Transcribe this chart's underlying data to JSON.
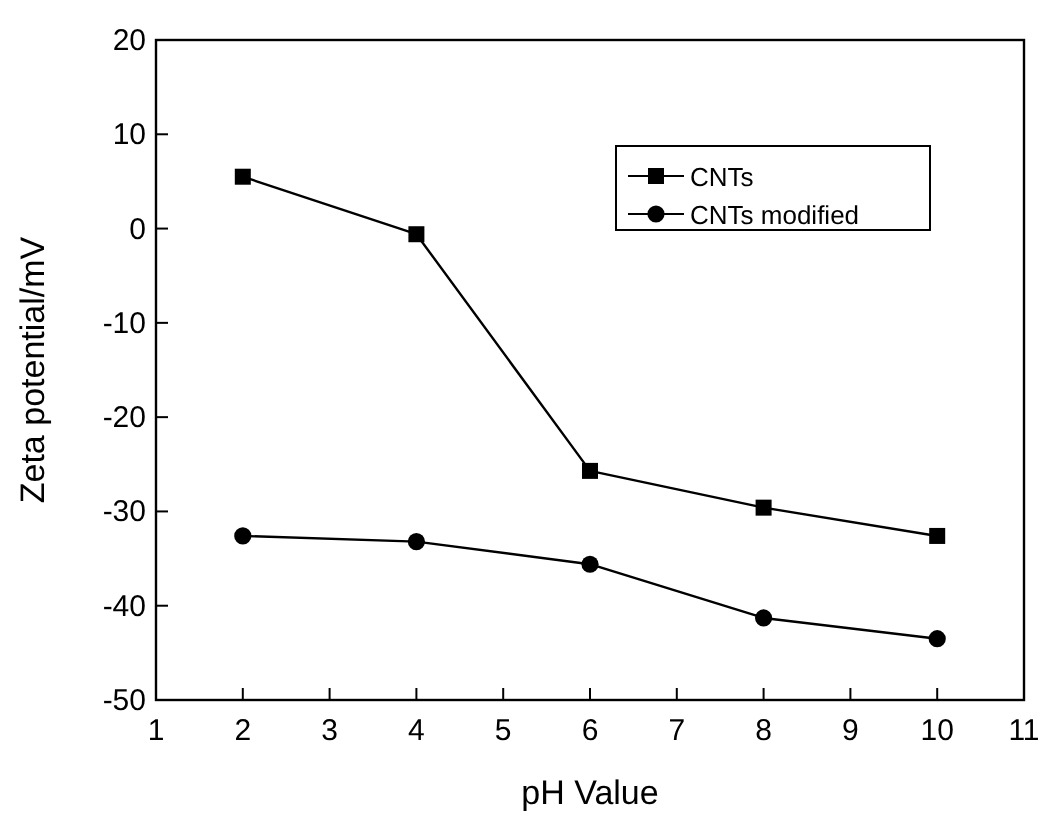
{
  "chart_data": {
    "type": "line",
    "xlabel": "pH Value",
    "ylabel": "Zeta potential/mV",
    "x": [
      2,
      4,
      6,
      8,
      10
    ],
    "xlim": [
      1,
      11
    ],
    "xticks": [
      1,
      2,
      3,
      4,
      5,
      6,
      7,
      8,
      9,
      10,
      11
    ],
    "ylim": [
      -50,
      20
    ],
    "yticks": [
      -50,
      -40,
      -30,
      -20,
      -10,
      0,
      10,
      20
    ],
    "legend": "top right",
    "grid": false,
    "line_style": "solid",
    "series": [
      {
        "name": "CNTs",
        "color": "#000000",
        "marker": "square",
        "values": [
          5.5,
          -0.6,
          -25.7,
          -29.6,
          -32.6
        ]
      },
      {
        "name": "CNTs modified",
        "color": "#000000",
        "marker": "circle",
        "values": [
          -32.6,
          -33.2,
          -35.6,
          -41.3,
          -43.5
        ]
      }
    ]
  }
}
